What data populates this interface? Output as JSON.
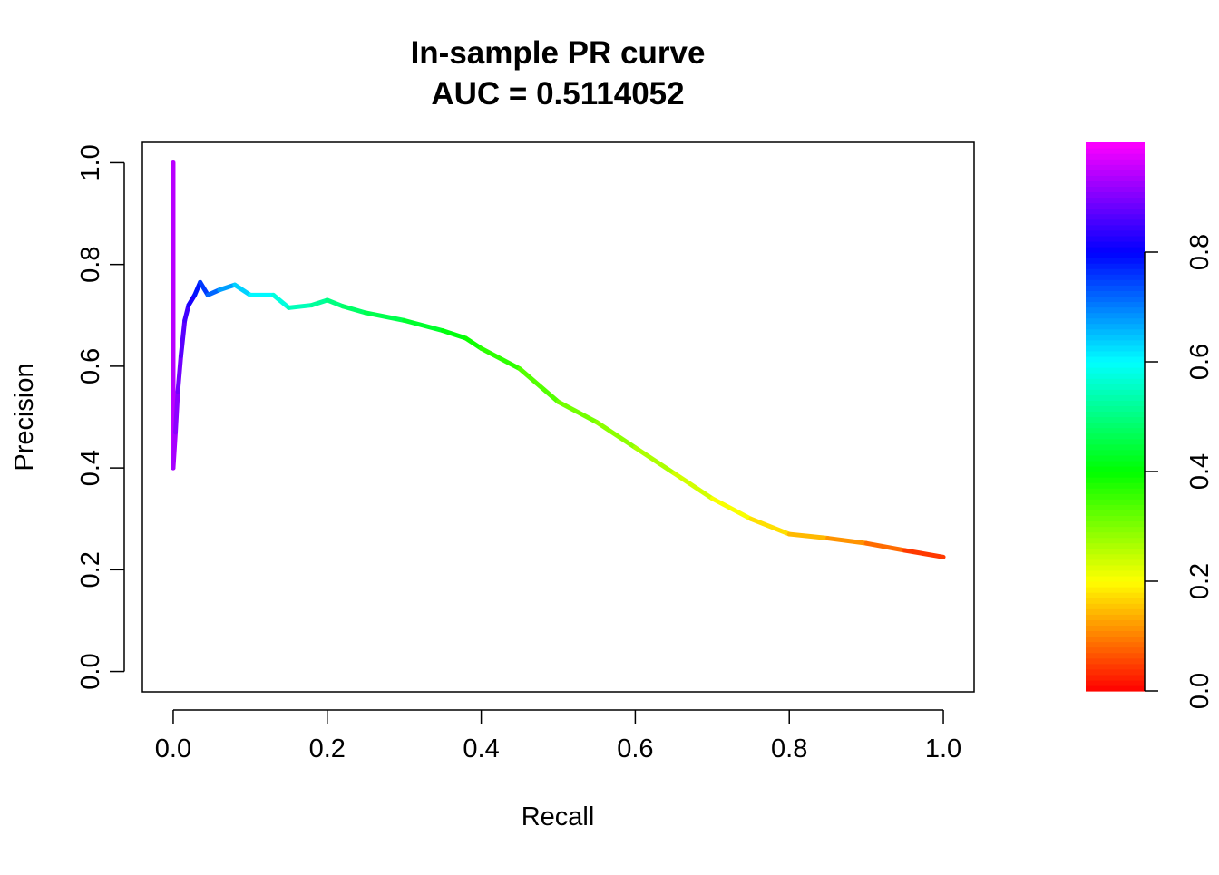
{
  "chart_data": {
    "type": "line",
    "title": "In-sample PR curve",
    "subtitle": "AUC = 0.5114052",
    "xlabel": "Recall",
    "ylabel": "Precision",
    "xlim": [
      -0.04,
      1.04
    ],
    "ylim": [
      -0.04,
      1.04
    ],
    "x_ticks": [
      0.0,
      0.2,
      0.4,
      0.6,
      0.8,
      1.0
    ],
    "y_ticks": [
      0.0,
      0.2,
      0.4,
      0.6,
      0.8,
      1.0
    ],
    "x_tick_labels": [
      "0.0",
      "0.2",
      "0.4",
      "0.6",
      "0.8",
      "1.0"
    ],
    "y_tick_labels": [
      "0.0",
      "0.2",
      "0.4",
      "0.6",
      "0.8",
      "1.0"
    ],
    "grid": false,
    "legend": "none",
    "color_by": "threshold",
    "colorbar": {
      "range": [
        0.0,
        1.0
      ],
      "ticks": [
        0.0,
        0.2,
        0.4,
        0.6,
        0.8
      ],
      "tick_labels": [
        "0.0",
        "0.2",
        "0.4",
        "0.6",
        "0.8"
      ],
      "palette": "rainbow"
    },
    "series": [
      {
        "points": [
          {
            "recall": 0.0,
            "precision": 1.0,
            "threshold": 0.95
          },
          {
            "recall": 0.0,
            "precision": 0.4,
            "threshold": 0.94
          },
          {
            "recall": 0.003,
            "precision": 0.47,
            "threshold": 0.92
          },
          {
            "recall": 0.006,
            "precision": 0.55,
            "threshold": 0.9
          },
          {
            "recall": 0.01,
            "precision": 0.62,
            "threshold": 0.88
          },
          {
            "recall": 0.015,
            "precision": 0.69,
            "threshold": 0.86
          },
          {
            "recall": 0.02,
            "precision": 0.72,
            "threshold": 0.84
          },
          {
            "recall": 0.028,
            "precision": 0.74,
            "threshold": 0.8
          },
          {
            "recall": 0.035,
            "precision": 0.765,
            "threshold": 0.77
          },
          {
            "recall": 0.045,
            "precision": 0.74,
            "threshold": 0.74
          },
          {
            "recall": 0.06,
            "precision": 0.75,
            "threshold": 0.7
          },
          {
            "recall": 0.08,
            "precision": 0.76,
            "threshold": 0.65
          },
          {
            "recall": 0.1,
            "precision": 0.74,
            "threshold": 0.62
          },
          {
            "recall": 0.13,
            "precision": 0.74,
            "threshold": 0.59
          },
          {
            "recall": 0.15,
            "precision": 0.715,
            "threshold": 0.56
          },
          {
            "recall": 0.18,
            "precision": 0.72,
            "threshold": 0.53
          },
          {
            "recall": 0.2,
            "precision": 0.73,
            "threshold": 0.51
          },
          {
            "recall": 0.22,
            "precision": 0.718,
            "threshold": 0.49
          },
          {
            "recall": 0.25,
            "precision": 0.705,
            "threshold": 0.47
          },
          {
            "recall": 0.3,
            "precision": 0.69,
            "threshold": 0.45
          },
          {
            "recall": 0.35,
            "precision": 0.67,
            "threshold": 0.42
          },
          {
            "recall": 0.38,
            "precision": 0.655,
            "threshold": 0.4
          },
          {
            "recall": 0.4,
            "precision": 0.635,
            "threshold": 0.38
          },
          {
            "recall": 0.45,
            "precision": 0.595,
            "threshold": 0.35
          },
          {
            "recall": 0.5,
            "precision": 0.53,
            "threshold": 0.32
          },
          {
            "recall": 0.55,
            "precision": 0.49,
            "threshold": 0.3
          },
          {
            "recall": 0.6,
            "precision": 0.44,
            "threshold": 0.28
          },
          {
            "recall": 0.65,
            "precision": 0.39,
            "threshold": 0.25
          },
          {
            "recall": 0.7,
            "precision": 0.34,
            "threshold": 0.22
          },
          {
            "recall": 0.75,
            "precision": 0.3,
            "threshold": 0.19
          },
          {
            "recall": 0.8,
            "precision": 0.27,
            "threshold": 0.16
          },
          {
            "recall": 0.85,
            "precision": 0.262,
            "threshold": 0.13
          },
          {
            "recall": 0.9,
            "precision": 0.252,
            "threshold": 0.1
          },
          {
            "recall": 0.95,
            "precision": 0.238,
            "threshold": 0.07
          },
          {
            "recall": 1.0,
            "precision": 0.225,
            "threshold": 0.02
          }
        ]
      }
    ]
  }
}
